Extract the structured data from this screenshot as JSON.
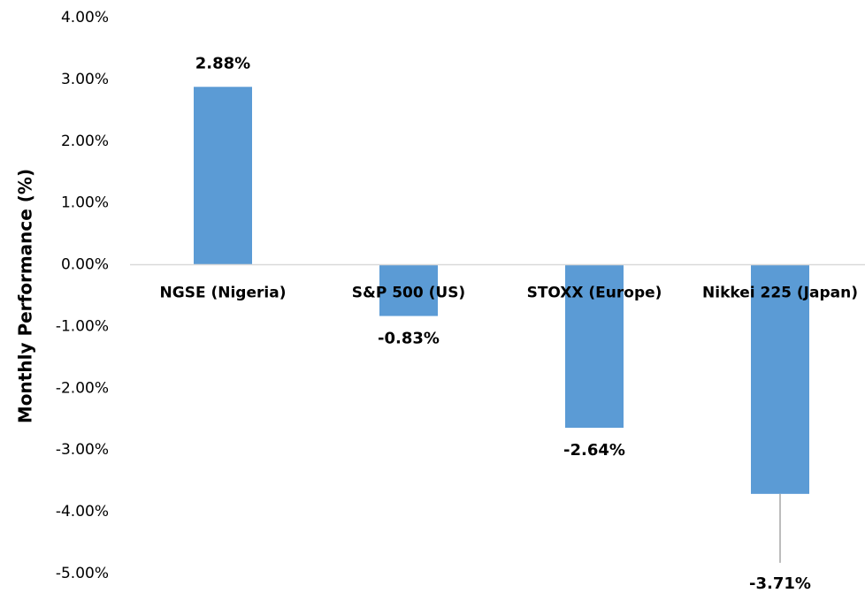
{
  "chart_data": {
    "type": "bar",
    "y_label": "Monthly Performance (%)",
    "categories": [
      "NGSE (Nigeria)",
      "S&P 500 (US)",
      "STOXX (Europe)",
      "Nikkei 225 (Japan)"
    ],
    "values": [
      2.88,
      -0.83,
      -2.64,
      -3.71
    ],
    "value_labels": [
      "2.88%",
      "-0.83%",
      "-2.64%",
      "-3.71%"
    ],
    "color": "#5b9bd5",
    "positive_label_color": "#70ad47",
    "negative_label_color": "#ff0000",
    "ylim": [
      -5,
      4
    ],
    "yticks": [
      {
        "value": 4,
        "label": "4.00%"
      },
      {
        "value": 3,
        "label": "3.00%"
      },
      {
        "value": 2,
        "label": "2.00%"
      },
      {
        "value": 1,
        "label": "1.00%"
      },
      {
        "value": 0,
        "label": "0.00%"
      },
      {
        "value": -1,
        "label": "-1.00%"
      },
      {
        "value": -2,
        "label": "-2.00%"
      },
      {
        "value": -3,
        "label": "-3.00%"
      },
      {
        "value": -4,
        "label": "-4.00%"
      },
      {
        "value": -5,
        "label": "-5.00%"
      }
    ],
    "grid": false
  }
}
